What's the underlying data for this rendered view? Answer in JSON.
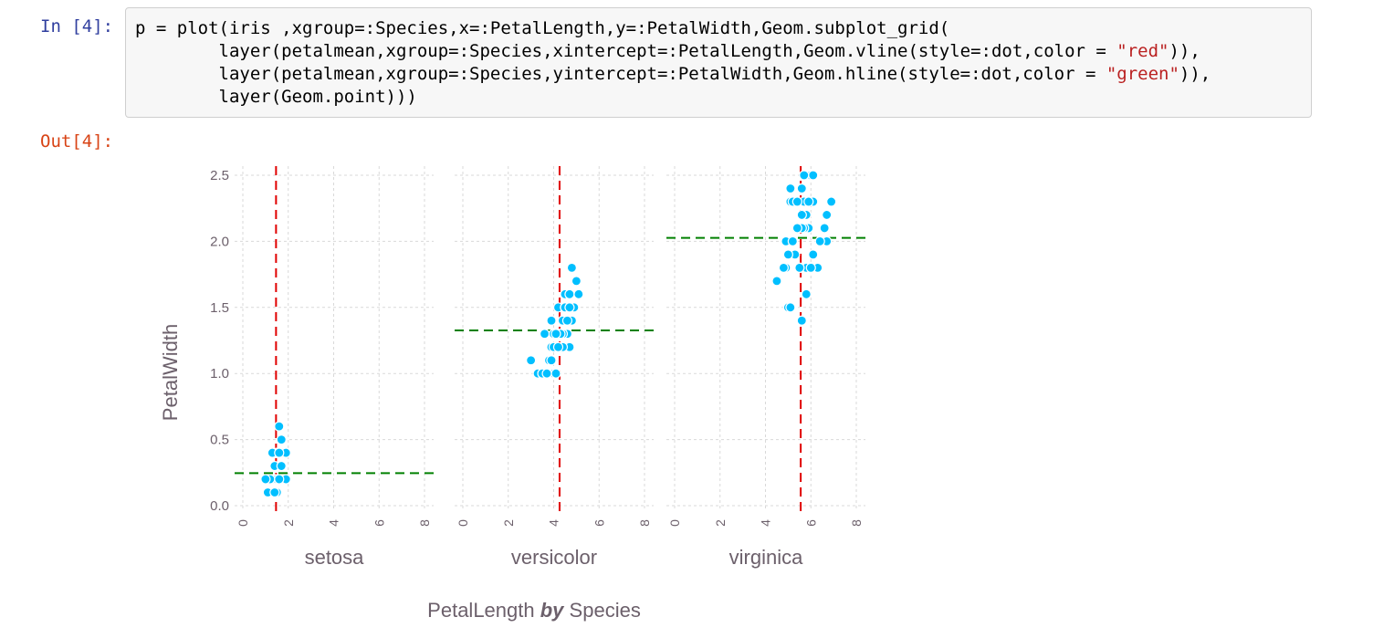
{
  "notebook": {
    "in_prompt": "In [4]:",
    "out_prompt": "Out[4]:",
    "code": {
      "line1": "p = plot(iris ,xgroup=:Species,x=:PetalLength,y=:PetalWidth,Geom.subplot_grid(",
      "line2_a": "        layer(petalmean,xgroup=:Species,xintercept=:PetalLength,Geom.vline(style=:dot,color = ",
      "line2_str": "\"red\"",
      "line2_b": ")),",
      "line3_a": "        layer(petalmean,xgroup=:Species,yintercept=:PetalWidth,Geom.hline(style=:dot,color = ",
      "line3_str": "\"green\"",
      "line3_b": ")),",
      "line4": "        layer(Geom.point)))"
    }
  },
  "chart_data": {
    "type": "scatter",
    "ylabel": "PetalWidth",
    "xlabel_prefix": "PetalLength",
    "xlabel_by": "by",
    "xlabel_suffix": "Species",
    "ylim": [
      0,
      2.5
    ],
    "xlim": [
      0,
      8
    ],
    "yticks": [
      "0.0",
      "0.5",
      "1.0",
      "1.5",
      "2.0",
      "2.5"
    ],
    "xticks": [
      "0",
      "2",
      "4",
      "6",
      "8"
    ],
    "grid": true,
    "colors": {
      "points": "#00bfff",
      "vline": "#e00000",
      "hline": "#008000",
      "grid": "#d9d9d9",
      "text": "#6c606b"
    },
    "panels": [
      {
        "group": "setosa",
        "mean_x": 1.462,
        "mean_y": 0.246,
        "points": [
          [
            1.4,
            0.2
          ],
          [
            1.3,
            0.2
          ],
          [
            1.5,
            0.2
          ],
          [
            1.7,
            0.4
          ],
          [
            1.4,
            0.3
          ],
          [
            1.5,
            0.1
          ],
          [
            1.6,
            0.2
          ],
          [
            1.1,
            0.1
          ],
          [
            1.2,
            0.2
          ],
          [
            1.5,
            0.4
          ],
          [
            1.3,
            0.4
          ],
          [
            1.7,
            0.3
          ],
          [
            1.9,
            0.2
          ],
          [
            1.6,
            0.6
          ],
          [
            1.9,
            0.4
          ],
          [
            1.6,
            0.4
          ],
          [
            1.4,
            0.1
          ],
          [
            1.0,
            0.2
          ],
          [
            1.7,
            0.5
          ],
          [
            1.6,
            0.2
          ]
        ]
      },
      {
        "group": "versicolor",
        "mean_x": 4.26,
        "mean_y": 1.326,
        "points": [
          [
            4.7,
            1.4
          ],
          [
            4.5,
            1.5
          ],
          [
            4.9,
            1.5
          ],
          [
            4.0,
            1.3
          ],
          [
            4.6,
            1.5
          ],
          [
            3.3,
            1.0
          ],
          [
            4.6,
            1.3
          ],
          [
            3.9,
            1.4
          ],
          [
            3.5,
            1.0
          ],
          [
            4.2,
            1.5
          ],
          [
            4.0,
            1.0
          ],
          [
            4.7,
            1.4
          ],
          [
            3.6,
            1.3
          ],
          [
            4.4,
            1.4
          ],
          [
            4.5,
            1.5
          ],
          [
            4.1,
            1.0
          ],
          [
            4.5,
            1.5
          ],
          [
            3.9,
            1.1
          ],
          [
            4.8,
            1.8
          ],
          [
            4.0,
            1.3
          ],
          [
            4.9,
            1.5
          ],
          [
            4.7,
            1.2
          ],
          [
            4.3,
            1.3
          ],
          [
            4.4,
            1.4
          ],
          [
            4.8,
            1.4
          ],
          [
            5.0,
            1.7
          ],
          [
            4.5,
            1.5
          ],
          [
            3.5,
            1.0
          ],
          [
            3.8,
            1.1
          ],
          [
            3.7,
            1.0
          ],
          [
            3.9,
            1.2
          ],
          [
            5.1,
            1.6
          ],
          [
            4.5,
            1.6
          ],
          [
            4.7,
            1.5
          ],
          [
            4.4,
            1.3
          ],
          [
            4.1,
            1.3
          ],
          [
            4.0,
            1.3
          ],
          [
            4.4,
            1.2
          ],
          [
            4.6,
            1.4
          ],
          [
            4.0,
            1.2
          ],
          [
            3.0,
            1.1
          ],
          [
            4.2,
            1.3
          ],
          [
            4.2,
            1.2
          ],
          [
            4.3,
            1.3
          ],
          [
            4.1,
            1.3
          ],
          [
            4.7,
            1.6
          ],
          [
            3.9,
            1.1
          ],
          [
            5.1,
            1.6
          ]
        ]
      },
      {
        "group": "virginica",
        "mean_x": 5.552,
        "mean_y": 2.026,
        "points": [
          [
            6.0,
            2.5
          ],
          [
            5.1,
            1.9
          ],
          [
            5.9,
            2.1
          ],
          [
            5.6,
            1.8
          ],
          [
            5.8,
            2.2
          ],
          [
            6.6,
            2.1
          ],
          [
            4.5,
            1.7
          ],
          [
            6.3,
            1.8
          ],
          [
            5.8,
            1.8
          ],
          [
            6.1,
            2.5
          ],
          [
            5.1,
            2.0
          ],
          [
            5.3,
            1.9
          ],
          [
            5.5,
            2.1
          ],
          [
            5.0,
            2.0
          ],
          [
            5.1,
            2.4
          ],
          [
            5.3,
            2.3
          ],
          [
            5.5,
            1.8
          ],
          [
            6.7,
            2.2
          ],
          [
            6.9,
            2.3
          ],
          [
            5.0,
            1.5
          ],
          [
            5.7,
            2.3
          ],
          [
            4.9,
            2.0
          ],
          [
            6.7,
            2.0
          ],
          [
            4.9,
            1.8
          ],
          [
            5.7,
            2.1
          ],
          [
            6.0,
            1.8
          ],
          [
            4.8,
            1.8
          ],
          [
            4.9,
            1.8
          ],
          [
            5.6,
            2.1
          ],
          [
            5.8,
            1.6
          ],
          [
            6.1,
            1.9
          ],
          [
            6.4,
            2.0
          ],
          [
            5.6,
            2.2
          ],
          [
            5.1,
            1.5
          ],
          [
            5.6,
            1.4
          ],
          [
            6.1,
            2.3
          ],
          [
            5.6,
            2.4
          ],
          [
            5.5,
            1.8
          ],
          [
            4.8,
            1.8
          ],
          [
            5.4,
            2.1
          ],
          [
            5.6,
            2.4
          ],
          [
            5.1,
            2.3
          ],
          [
            5.9,
            2.3
          ],
          [
            5.7,
            2.5
          ],
          [
            5.2,
            2.3
          ],
          [
            5.0,
            1.9
          ],
          [
            5.2,
            2.0
          ],
          [
            5.4,
            2.3
          ]
        ]
      }
    ]
  }
}
